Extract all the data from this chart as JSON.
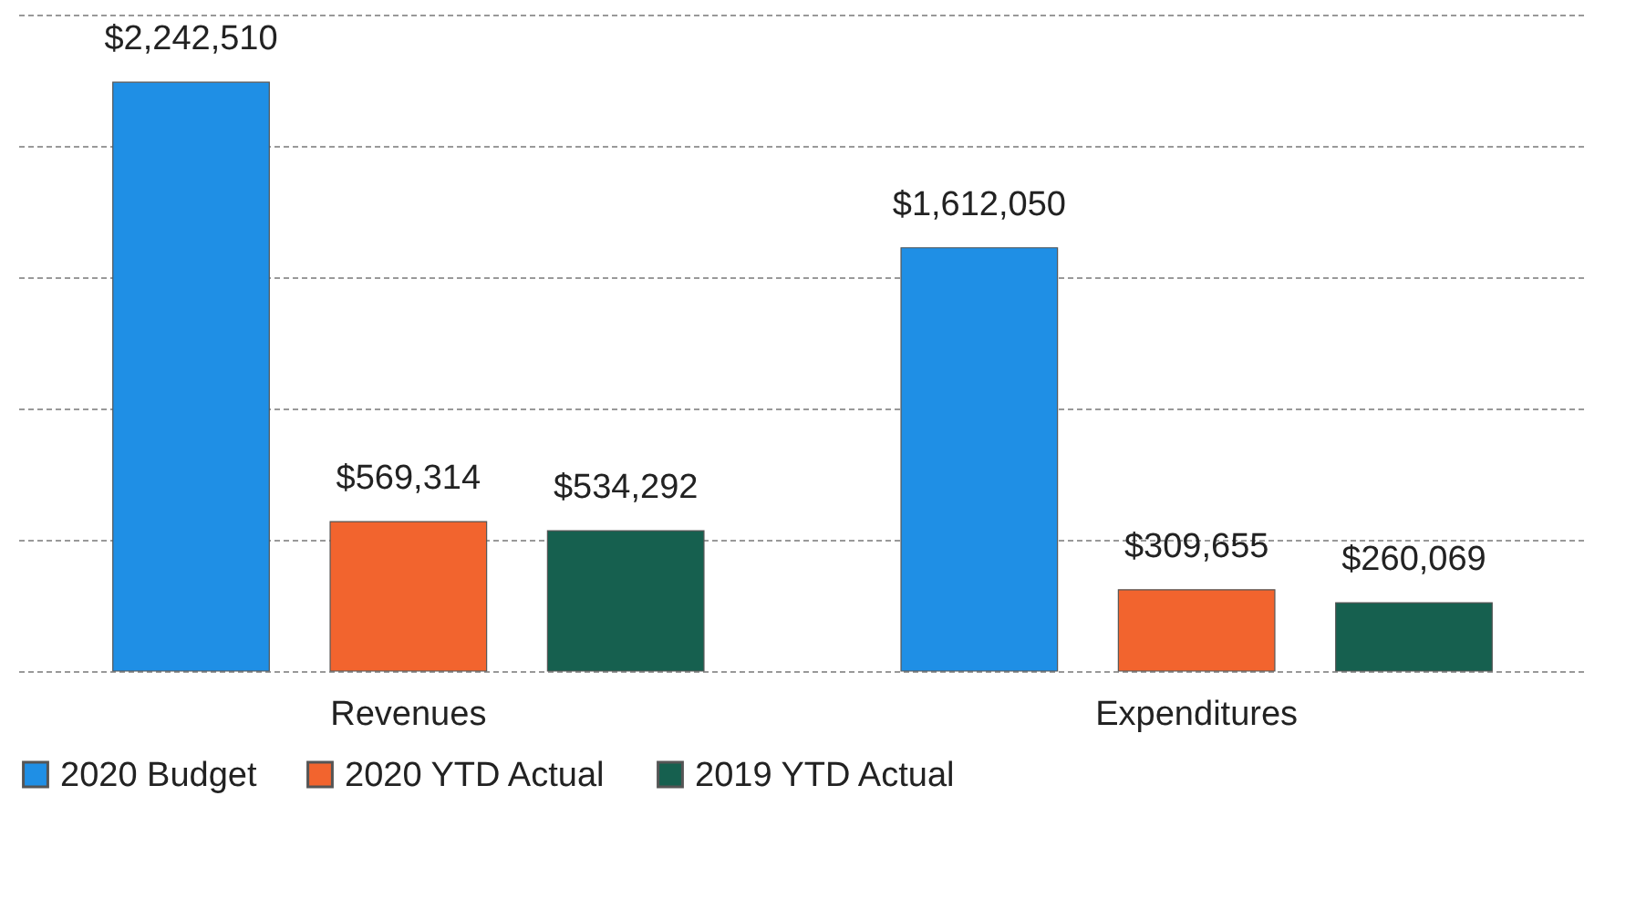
{
  "chart_data": {
    "type": "bar",
    "categories": [
      "Revenues",
      "Expenditures"
    ],
    "series": [
      {
        "name": "2020 Budget",
        "color": "#1f8fe5",
        "values": [
          2242510,
          1612050
        ],
        "value_labels": [
          "$2,242,510",
          "$1,612,050"
        ]
      },
      {
        "name": "2020 YTD Actual",
        "color": "#f2642e",
        "values": [
          569314,
          309655
        ],
        "value_labels": [
          "$569,314",
          "$309,655"
        ]
      },
      {
        "name": "2019 YTD Actual",
        "color": "#16604f",
        "values": [
          534292,
          260069
        ],
        "value_labels": [
          "$534,292",
          "$260,069"
        ]
      }
    ],
    "ylim": [
      0,
      2500000
    ],
    "yticks": [
      {
        "value": 0,
        "label": null
      },
      {
        "value": 500000,
        "label": null
      },
      {
        "value": 1000000,
        "label": null
      },
      {
        "value": 1500000,
        "label": null
      },
      {
        "value": 2000000,
        "label": null
      },
      {
        "value": 2500000,
        "label": null
      }
    ],
    "grid": "y",
    "legend": "bottom",
    "tick_labels": "x"
  }
}
